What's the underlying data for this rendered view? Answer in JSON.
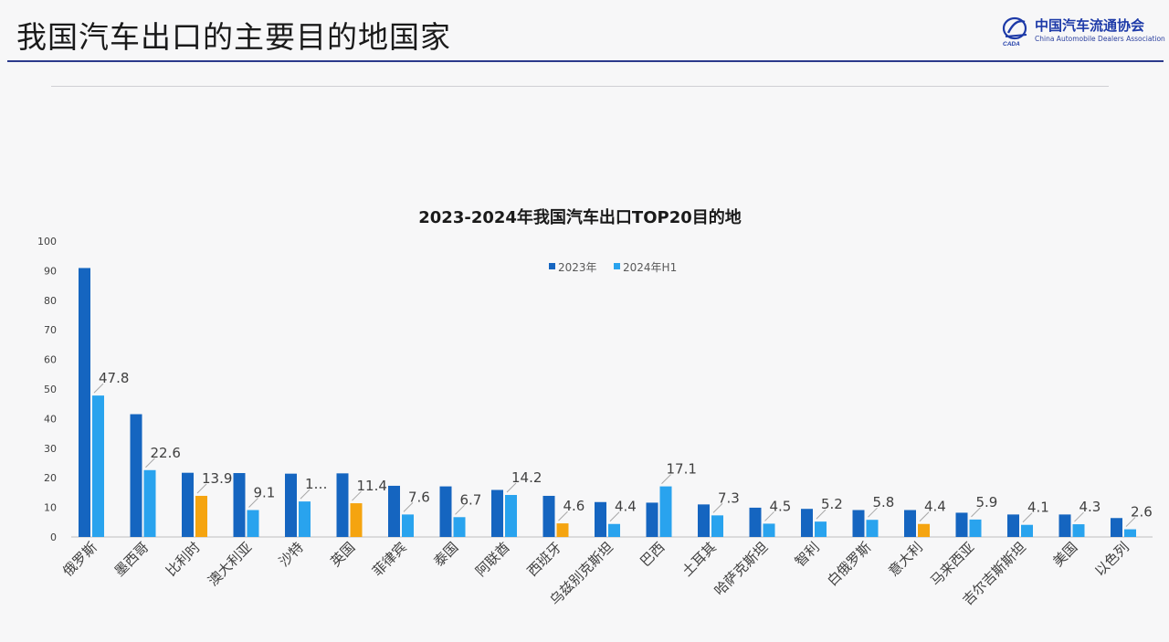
{
  "slide": {
    "title": "我国汽车出口的主要目的地国家"
  },
  "logo": {
    "name": "中国汽车流通协会",
    "subtitle": "China Automobile Dealers Association",
    "mark_text": "CADA"
  },
  "colors": {
    "series_2023": "#1565c0",
    "series_2024": "#29a3ee",
    "highlight_2024": "#f5a410",
    "header_rule": "#2b3a8c"
  },
  "chart_data": {
    "type": "bar",
    "title": "2023-2024年我国汽车出口TOP20目的地",
    "xlabel": "",
    "ylabel": "",
    "ylim": [
      0,
      100
    ],
    "yticks": [
      0,
      10,
      20,
      30,
      40,
      50,
      60,
      70,
      80,
      90,
      100
    ],
    "grid": false,
    "legend": "top-center",
    "categories": [
      "俄罗斯",
      "墨西哥",
      "比利时",
      "澳大利亚",
      "沙特",
      "英国",
      "菲律宾",
      "泰国",
      "阿联酋",
      "西班牙",
      "乌兹别克斯坦",
      "巴西",
      "土耳其",
      "哈萨克斯坦",
      "智利",
      "白俄罗斯",
      "意大利",
      "马来西亚",
      "吉尔吉斯斯坦",
      "美国",
      "以色列"
    ],
    "series": [
      {
        "name": "2023年",
        "values": [
          90.9,
          41.5,
          21.7,
          21.6,
          21.4,
          21.5,
          17.3,
          17.1,
          15.9,
          13.9,
          11.8,
          11.6,
          11.0,
          9.9,
          9.5,
          9.1,
          9.1,
          8.2,
          7.6,
          7.6,
          6.4
        ],
        "labels": [
          "",
          "",
          "",
          "",
          "",
          "",
          "",
          "",
          "",
          "",
          "",
          "",
          "",
          "",
          "",
          "",
          "",
          "",
          "",
          "",
          ""
        ]
      },
      {
        "name": "2024年H1",
        "values": [
          47.8,
          22.6,
          13.9,
          9.1,
          12.0,
          11.4,
          7.6,
          6.7,
          14.2,
          4.6,
          4.4,
          17.1,
          7.3,
          4.5,
          5.2,
          5.8,
          4.4,
          5.9,
          4.1,
          4.3,
          2.6
        ],
        "labels": [
          "47.8",
          "22.6",
          "13.9",
          "9.1",
          "1…",
          "11.4",
          "7.6",
          "6.7",
          "14.2",
          "4.6",
          "4.4",
          "17.1",
          "7.3",
          "4.5",
          "5.2",
          "5.8",
          "4.4",
          "5.9",
          "4.1",
          "4.3",
          "2.6"
        ],
        "highlight_indices": [
          2,
          5,
          9,
          16
        ]
      }
    ]
  }
}
